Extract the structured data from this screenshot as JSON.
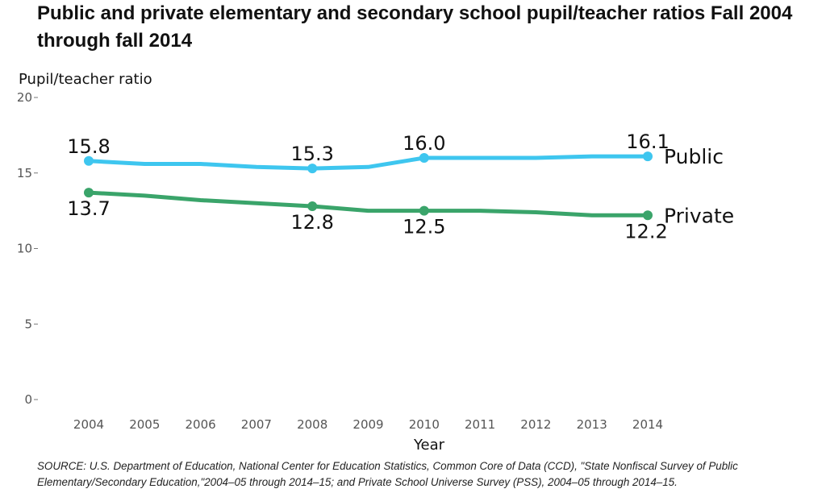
{
  "chart_data": {
    "type": "line",
    "title": "Public and private elementary and secondary school pupil/teacher ratios Fall 2004 through fall 2014",
    "xlabel": "Year",
    "ylabel": "Pupil/teacher ratio",
    "ylim": [
      0,
      20
    ],
    "yticks": [
      "0",
      "5",
      "10",
      "15",
      "20"
    ],
    "ytick_values": [
      0,
      5,
      10,
      15,
      20
    ],
    "x": [
      "2004",
      "2005",
      "2006",
      "2007",
      "2008",
      "2009",
      "2010",
      "2011",
      "2012",
      "2013",
      "2014"
    ],
    "grid": false,
    "legend": "direct labels at right of lines",
    "series": [
      {
        "name": "Public",
        "color": "#3ec6ef",
        "values": [
          15.8,
          15.6,
          15.6,
          15.4,
          15.3,
          15.4,
          16.0,
          16.0,
          16.0,
          16.1,
          16.1
        ],
        "labeled_points": [
          {
            "index": 0,
            "label": "15.8"
          },
          {
            "index": 4,
            "label": "15.3"
          },
          {
            "index": 6,
            "label": "16.0"
          },
          {
            "index": 10,
            "label": "16.1"
          }
        ]
      },
      {
        "name": "Private",
        "color": "#3aa46a",
        "values": [
          13.7,
          13.5,
          13.2,
          13.0,
          12.8,
          12.5,
          12.5,
          12.5,
          12.4,
          12.2,
          12.2
        ],
        "labeled_points": [
          {
            "index": 0,
            "label": "13.7"
          },
          {
            "index": 4,
            "label": "12.8"
          },
          {
            "index": 6,
            "label": "12.5"
          },
          {
            "index": 10,
            "label": "12.2"
          }
        ]
      }
    ]
  },
  "source_note": "SOURCE: U.S. Department of Education, National Center for Education Statistics, Common Core of Data (CCD), \"State Nonfiscal Survey of Public Elementary/Secondary Education,\"2004–05 through 2014–15; and Private School Universe Survey (PSS), 2004–05 through 2014–15."
}
